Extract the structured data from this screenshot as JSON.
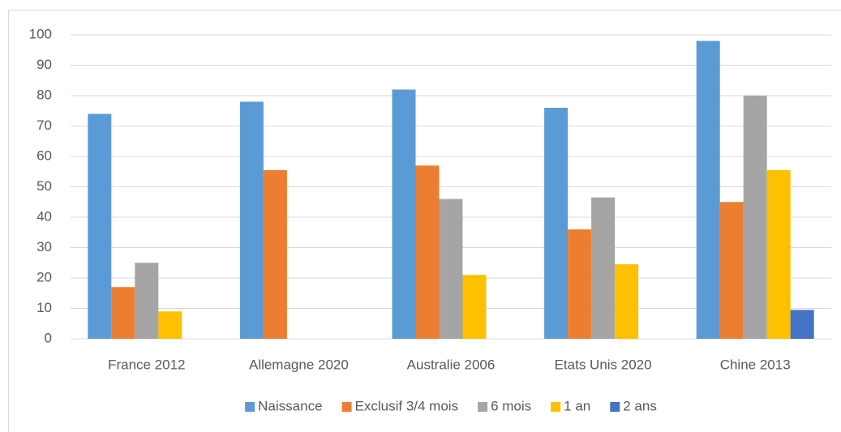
{
  "chart_data": {
    "type": "bar",
    "categories": [
      "France 2012",
      "Allemagne 2020",
      "Australie 2006",
      "Etats Unis 2020",
      "Chine 2013"
    ],
    "series": [
      {
        "name": "Naissance",
        "color": "#5b9bd5",
        "values": [
          74,
          78,
          82,
          76,
          98
        ]
      },
      {
        "name": "Exclusif 3/4 mois",
        "color": "#ed7d31",
        "values": [
          17,
          55.5,
          57,
          36,
          45
        ]
      },
      {
        "name": "6 mois",
        "color": "#a5a5a5",
        "values": [
          25,
          null,
          46,
          46.5,
          80
        ]
      },
      {
        "name": "1 an",
        "color": "#ffc000",
        "values": [
          9,
          null,
          21,
          24.5,
          55.5
        ]
      },
      {
        "name": "2 ans",
        "color": "#4472c4",
        "values": [
          null,
          null,
          null,
          null,
          9.5
        ]
      }
    ],
    "ylim": [
      0,
      100
    ],
    "yticks": [
      0,
      10,
      20,
      30,
      40,
      50,
      60,
      70,
      80,
      90,
      100
    ],
    "grid": true,
    "legend": "bottom"
  }
}
